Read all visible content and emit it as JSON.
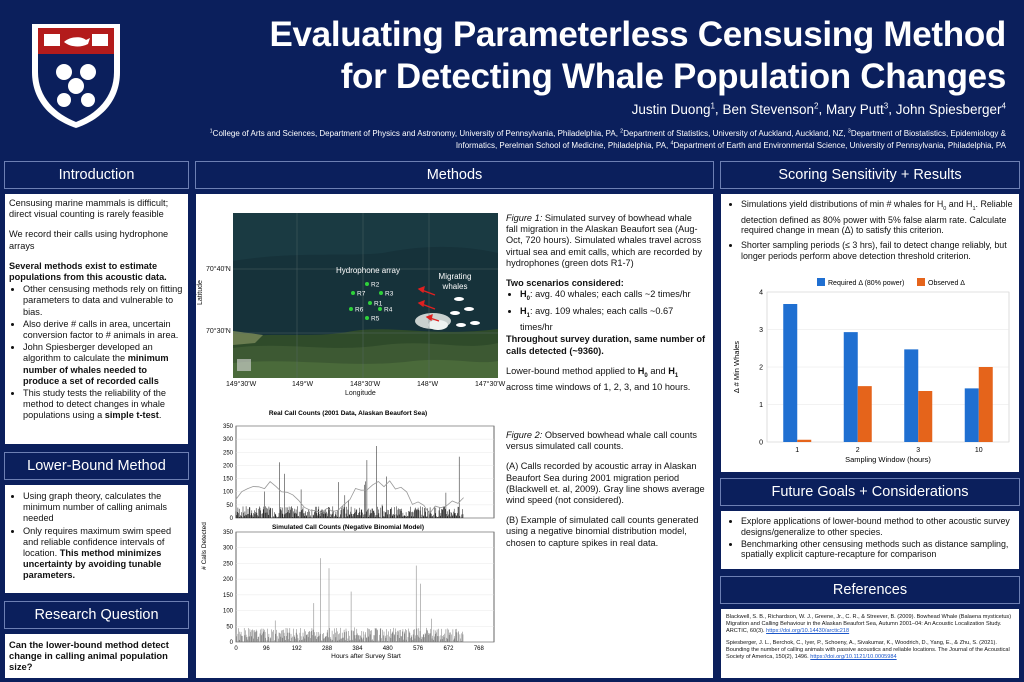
{
  "header": {
    "title_line1": "Evaluating Parameterless Censusing Method",
    "title_line2": "for Detecting Whale Population Changes",
    "authors": [
      {
        "name": "Justin Duong",
        "sup": "1"
      },
      {
        "name": "Ben Stevenson",
        "sup": "2"
      },
      {
        "name": "Mary Putt",
        "sup": "3"
      },
      {
        "name": "John Spiesberger",
        "sup": "4"
      }
    ],
    "affiliations": [
      {
        "sup": "1",
        "text": "College of Arts and Sciences, Department of Physics and Astronomy, University of Pennsylvania, Philadelphia, PA, "
      },
      {
        "sup": "2",
        "text": "Department of Statistics, University of Auckland, Auckland, NZ, "
      },
      {
        "sup": "3",
        "text": "Department of Biostatistics, Epidemiology & Informatics, Perelman School of Medicine, Philadelphia, PA, "
      },
      {
        "sup": "4",
        "text": "Department of Earth and Environmental Science, University of Pennsylvania, Philadelphia, PA"
      }
    ]
  },
  "introduction": {
    "title": "Introduction",
    "p1": "Censusing marine mammals is difficult; direct visual counting is rarely feasible",
    "p2": "We record their calls using hydrophone arrays",
    "p3": "Several methods exist to estimate populations from this acoustic data.",
    "b1": "Other censusing methods rely on fitting parameters to data and vulnerable to bias.",
    "b2": "Also derive # calls in area, uncertain conversion factor to # animals in area.",
    "b3a": "John Spiesberger developed an algorithm to calculate the ",
    "b3b": "minimum number of whales needed to produce a set of recorded calls",
    "b4a": "This study tests the reliability of the method to detect changes in whale populations using a ",
    "b4b": "simple t-test",
    "b4c": "."
  },
  "lower_bound": {
    "title": "Lower-Bound Method",
    "b1": "Using graph theory, calculates the minimum number of calling animals needed",
    "b2a": "Only requires maximum swim speed and reliable confidence intervals of location. ",
    "b2b": "This method minimizes uncertainty by avoiding tunable parameters."
  },
  "research_question": {
    "title": "Research Question",
    "text": "Can the lower-bound method detect change in calling animal population size?"
  },
  "methods": {
    "title": "Methods",
    "map": {
      "hydrophone_label": "Hydrophone array",
      "migrating_label1": "Migrating",
      "migrating_label2": "whales",
      "lat_labels": [
        "70°40'N",
        "70°30'N"
      ],
      "lon_labels": [
        "149°30'W",
        "149°W",
        "148°30'W",
        "148°W",
        "147°30'W"
      ],
      "ylabel": "Latitude",
      "xlabel": "Longitude",
      "hydrophones": [
        "R1",
        "R2",
        "R3",
        "R4",
        "R5",
        "R6",
        "R7"
      ]
    },
    "fig1_label": "Figure 1:",
    "fig1_text": " Simulated survey of bowhead whale fall migration in the Alaskan Beaufort sea (Aug-Oct, 720 hours). Simulated whales travel across virtual sea and emit calls, which are recorded by hydrophones (green dots R1-7)",
    "scenarios_title": "Two scenarios considered:",
    "h0_label": "H",
    "h0_sub": "0",
    "h0_text": ": avg. 40 whales; each calls ~2 times/hr",
    "h1_label": "H",
    "h1_sub": "1",
    "h1_text": ": avg. 109 whales; each calls ~0.67 times/hr",
    "same_calls": "Throughout survey duration, same number of calls detected (~9360).",
    "lb_text_a": "Lower-bound method applied to ",
    "lb_text_b": " and ",
    "lb_text_c": " across time windows of 1, 2, 3, and 10 hours.",
    "fig2_label": "Figure 2:",
    "fig2_text": " Observed bowhead whale call counts versus simulated call counts.",
    "fig2_a": "(A) Calls recorded by acoustic array in Alaskan Beaufort Sea during 2001 migration period (Blackwell et. al, 2009). Gray line shows average wind speed (not considered).",
    "fig2_b": "(B) Example of simulated call counts generated using a negative binomial distribution model, chosen to capture spikes in real data."
  },
  "counts_chart": {
    "title_a": "Real Call Counts (2001 Data, Alaskan Beaufort Sea)",
    "title_b": "Simulated Call Counts (Negative Binomial Model)",
    "panel_a": "A",
    "panel_b": "B",
    "ylabel": "# Calls Detected",
    "xlabel": "Hours after Survey Start",
    "x_ticks": [
      "0",
      "96",
      "192",
      "288",
      "384",
      "480",
      "576",
      "672",
      "768"
    ],
    "y_ticks": [
      "0",
      "50",
      "100",
      "150",
      "200",
      "250",
      "300",
      "350"
    ]
  },
  "results": {
    "title": "Scoring Sensitivity + Results",
    "b1a": "Simulations yield distributions of min # whales for H",
    "b1_sub0": "0",
    "b1b": " and H",
    "b1_sub1": "1",
    "b1c": ". Reliable detection defined as  80% power with 5% false alarm rate. Calculate required change in mean (Δ) to satisfy this criterion.",
    "b2": "Shorter sampling periods (≤ 3 hrs), fail to detect change reliably, but longer periods perform above detection threshold criterion."
  },
  "chart_data": {
    "type": "bar",
    "categories": [
      "1",
      "2",
      "3",
      "10"
    ],
    "series": [
      {
        "name": "Required Δ (80% power)",
        "values": [
          3.68,
          2.93,
          2.47,
          1.43
        ],
        "color": "#1f6fd1"
      },
      {
        "name": "Observed Δ",
        "values": [
          0.06,
          1.49,
          1.36,
          2.0
        ],
        "color": "#e5641b"
      }
    ],
    "xlabel": "Sampling Window (hours)",
    "ylabel": "Δ # Min Whales",
    "ylim": [
      0,
      4
    ],
    "y_ticks": [
      "0",
      "1",
      "2",
      "3",
      "4"
    ],
    "legend": "top"
  },
  "future": {
    "title": "Future Goals + Considerations",
    "b1": "Explore applications of lower-bound method to other acoustic survey designs/generalize to other species.",
    "b2": "Benchmarking other censusing methods such as distance sampling, spatially explicit  capture-recapture for comparison"
  },
  "references": {
    "title": "References",
    "r1": "Blackwell, S. B., Richardson, W. J., Greene, Jr., C. R., & Streever, B. (2009). Bowhead Whale (Balaena mysticetus) Migration and Calling Behaviour in the Alaskan Beaufort Sea, Autumn 2001–04: An Acoustic Localization Study. ARCTIC, 60(3). ",
    "r1_link": "https://doi.org/10.14430/arctic218",
    "r2": "Spiesberger, J. L., Berchok, C., Iyer, P., Schoeny, A., Sivakumar, K., Woodrich, D., Yang, E., & Zhu, S. (2021). Bounding the number of calling animals with passive acoustics and reliable locations. The Journal of the Acoustical Society of America, 150(2), 1496. ",
    "r2_link": "https://doi.org/10.1121/10.0005984"
  }
}
